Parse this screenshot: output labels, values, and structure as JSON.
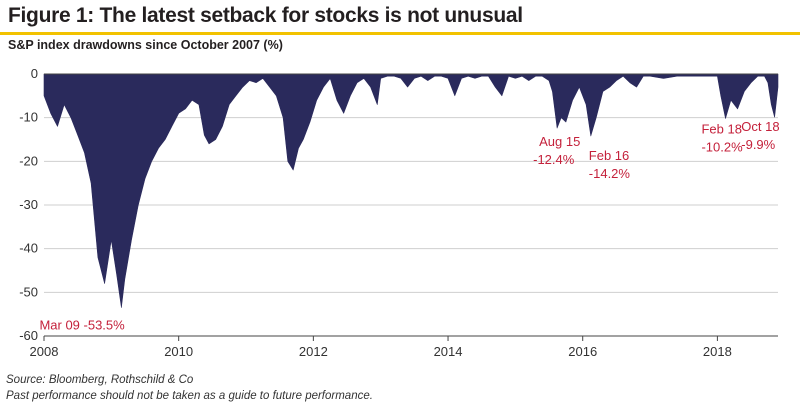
{
  "figure": {
    "title": "Figure 1: The latest setback for stocks is not unusual",
    "subtitle": "S&P index drawdowns since October 2007 (%)"
  },
  "footer": {
    "source": "Source: Bloomberg, Rothschild & Co",
    "disclaimer": "Past performance should not be taken as a guide to future performance."
  },
  "colors": {
    "fill": "#2a2a5c",
    "annotation": "#c4213b",
    "accent_rule": "#f2c200",
    "grid": "#cfcfcf"
  },
  "chart_data": {
    "type": "area",
    "title": "",
    "xlabel": "",
    "ylabel": "",
    "xlim": [
      2008,
      2018.9
    ],
    "ylim": [
      -60,
      0
    ],
    "xticks": [
      {
        "value": 2008,
        "label": "2008"
      },
      {
        "value": 2010,
        "label": "2010"
      },
      {
        "value": 2012,
        "label": "2012"
      },
      {
        "value": 2014,
        "label": "2014"
      },
      {
        "value": 2016,
        "label": "2016"
      },
      {
        "value": 2018,
        "label": "2018"
      }
    ],
    "yticks": [
      {
        "value": 0,
        "label": "0"
      },
      {
        "value": -10,
        "label": "-10"
      },
      {
        "value": -20,
        "label": "-20"
      },
      {
        "value": -30,
        "label": "-30"
      },
      {
        "value": -40,
        "label": "-40"
      },
      {
        "value": -50,
        "label": "-50"
      },
      {
        "value": -60,
        "label": "-60"
      }
    ],
    "grid": true,
    "series": [
      {
        "x": [
          2008.0,
          2008.1,
          2008.2,
          2008.3,
          2008.4,
          2008.5,
          2008.6,
          2008.7,
          2008.8,
          2008.9,
          2009.0,
          2009.08,
          2009.15,
          2009.2,
          2009.3,
          2009.4,
          2009.5,
          2009.6,
          2009.7,
          2009.8,
          2009.9,
          2010.0,
          2010.1,
          2010.2,
          2010.3,
          2010.38,
          2010.45,
          2010.55,
          2010.65,
          2010.75,
          2010.85,
          2010.95,
          2011.05,
          2011.15,
          2011.25,
          2011.35,
          2011.45,
          2011.55,
          2011.62,
          2011.7,
          2011.78,
          2011.85,
          2011.95,
          2012.05,
          2012.15,
          2012.25,
          2012.35,
          2012.45,
          2012.55,
          2012.65,
          2012.75,
          2012.85,
          2012.95,
          2013.0,
          2013.1,
          2013.2,
          2013.3,
          2013.4,
          2013.5,
          2013.6,
          2013.7,
          2013.8,
          2013.9,
          2014.0,
          2014.1,
          2014.2,
          2014.3,
          2014.4,
          2014.5,
          2014.6,
          2014.7,
          2014.8,
          2014.9,
          2015.0,
          2015.1,
          2015.2,
          2015.3,
          2015.4,
          2015.5,
          2015.55,
          2015.62,
          2015.68,
          2015.75,
          2015.85,
          2015.95,
          2016.05,
          2016.12,
          2016.2,
          2016.3,
          2016.4,
          2016.5,
          2016.6,
          2016.7,
          2016.8,
          2016.9,
          2017.0,
          2017.2,
          2017.4,
          2017.6,
          2017.8,
          2018.0,
          2018.05,
          2018.12,
          2018.2,
          2018.3,
          2018.4,
          2018.5,
          2018.6,
          2018.7,
          2018.75,
          2018.8,
          2018.85,
          2018.9
        ],
        "values": [
          -5,
          -9,
          -12,
          -7,
          -10,
          -14,
          -18,
          -25,
          -42,
          -48,
          -38,
          -46,
          -53.5,
          -47,
          -38,
          -30,
          -24,
          -20,
          -17,
          -15,
          -12,
          -9,
          -8,
          -6,
          -7,
          -14,
          -16,
          -15,
          -12,
          -7,
          -5,
          -3,
          -1.5,
          -2,
          -1,
          -3,
          -5,
          -10,
          -20,
          -22,
          -17,
          -15,
          -11,
          -6,
          -3,
          -1,
          -6,
          -9,
          -5,
          -2,
          -1,
          -3,
          -7,
          -1,
          -0.5,
          -0.5,
          -1,
          -3,
          -1,
          -0.5,
          -1.5,
          -0.5,
          -0.5,
          -1,
          -5,
          -1,
          -0.5,
          -1,
          -0.5,
          -0.5,
          -3,
          -5,
          -0.5,
          -1,
          -0.5,
          -1.5,
          -0.5,
          -0.5,
          -1.5,
          -4,
          -12.4,
          -10,
          -11,
          -6,
          -3,
          -7,
          -14.2,
          -10,
          -4,
          -3,
          -1.5,
          -0.5,
          -2,
          -3,
          -0.5,
          -0.5,
          -1,
          -0.5,
          -0.5,
          -0.5,
          -0.5,
          -5,
          -10.2,
          -6,
          -8,
          -4,
          -2,
          -0.5,
          -0.5,
          -2,
          -7,
          -9.9,
          -3
        ]
      }
    ],
    "annotations": [
      {
        "label": "Mar 09 -53.5%",
        "x": 2009.15,
        "y": -53.5
      },
      {
        "label": "Aug 15",
        "x": 2015.62,
        "y": -12.4
      },
      {
        "label": "-12.4%",
        "x": 2015.62,
        "y": -12.4
      },
      {
        "label": "Feb 16",
        "x": 2016.12,
        "y": -14.2
      },
      {
        "label": "-14.2%",
        "x": 2016.12,
        "y": -14.2
      },
      {
        "label": "Feb 18",
        "x": 2018.12,
        "y": -10.2
      },
      {
        "label": "-10.2%",
        "x": 2018.12,
        "y": -10.2
      },
      {
        "label": "Oct 18",
        "x": 2018.8,
        "y": -9.9
      },
      {
        "label": "-9.9%",
        "x": 2018.8,
        "y": -9.9
      }
    ]
  }
}
